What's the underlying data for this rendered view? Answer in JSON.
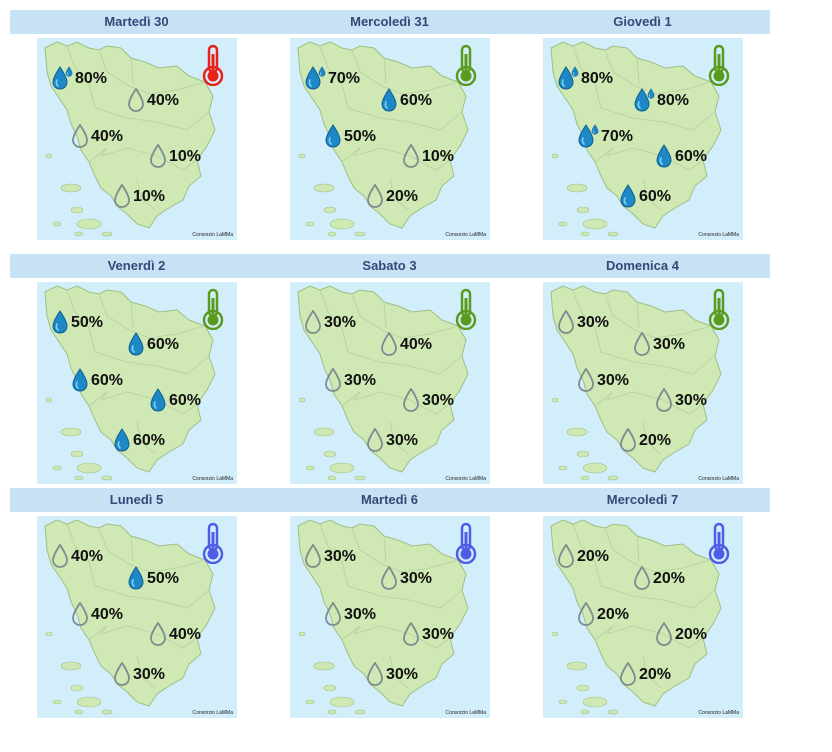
{
  "days": [
    {
      "title": "Martedì 30",
      "temp_color": "#e8221b",
      "credit": "Consorzio LaMMa",
      "rain": [
        {
          "v": "80%",
          "t": "wet",
          "mini": true
        },
        {
          "v": "40%",
          "t": "dry"
        },
        {
          "v": "40%",
          "t": "dry"
        },
        {
          "v": "10%",
          "t": "dry"
        },
        {
          "v": "10%",
          "t": "dry"
        }
      ]
    },
    {
      "title": "Mercoledì 31",
      "temp_color": "#5a9b1e",
      "credit": "Consorzio LaMMa",
      "rain": [
        {
          "v": "70%",
          "t": "wet",
          "mini": true
        },
        {
          "v": "60%",
          "t": "wet"
        },
        {
          "v": "50%",
          "t": "wet"
        },
        {
          "v": "10%",
          "t": "dry"
        },
        {
          "v": "20%",
          "t": "dry"
        }
      ]
    },
    {
      "title": "Giovedì 1",
      "temp_color": "#5a9b1e",
      "credit": "Consorzio LaMMa",
      "rain": [
        {
          "v": "80%",
          "t": "wet",
          "mini": true
        },
        {
          "v": "80%",
          "t": "wet",
          "mini": true
        },
        {
          "v": "70%",
          "t": "wet",
          "mini": true
        },
        {
          "v": "60%",
          "t": "wet"
        },
        {
          "v": "60%",
          "t": "wet"
        }
      ]
    },
    {
      "title": "Venerdì 2",
      "temp_color": "#5a9b1e",
      "credit": "Consorzio LaMMa",
      "rain": [
        {
          "v": "50%",
          "t": "wet"
        },
        {
          "v": "60%",
          "t": "wet"
        },
        {
          "v": "60%",
          "t": "wet"
        },
        {
          "v": "60%",
          "t": "wet"
        },
        {
          "v": "60%",
          "t": "wet"
        }
      ]
    },
    {
      "title": "Sabato 3",
      "temp_color": "#5a9b1e",
      "credit": "Consorzio LaMMa",
      "rain": [
        {
          "v": "30%",
          "t": "dry"
        },
        {
          "v": "40%",
          "t": "dry"
        },
        {
          "v": "30%",
          "t": "dry"
        },
        {
          "v": "30%",
          "t": "dry"
        },
        {
          "v": "30%",
          "t": "dry"
        }
      ]
    },
    {
      "title": "Domenica 4",
      "temp_color": "#5a9b1e",
      "credit": "Consorzio LaMMa",
      "rain": [
        {
          "v": "30%",
          "t": "dry"
        },
        {
          "v": "30%",
          "t": "dry"
        },
        {
          "v": "30%",
          "t": "dry"
        },
        {
          "v": "30%",
          "t": "dry"
        },
        {
          "v": "20%",
          "t": "dry"
        }
      ]
    },
    {
      "title": "Lunedì 5",
      "temp_color": "#4e5ce6",
      "credit": "Consorzio LaMMa",
      "rain": [
        {
          "v": "40%",
          "t": "dry"
        },
        {
          "v": "50%",
          "t": "wet"
        },
        {
          "v": "40%",
          "t": "dry"
        },
        {
          "v": "40%",
          "t": "dry"
        },
        {
          "v": "30%",
          "t": "dry"
        }
      ]
    },
    {
      "title": "Martedì 6",
      "temp_color": "#4e5ce6",
      "credit": "Consorzio LaMMa",
      "rain": [
        {
          "v": "30%",
          "t": "dry"
        },
        {
          "v": "30%",
          "t": "dry"
        },
        {
          "v": "30%",
          "t": "dry"
        },
        {
          "v": "30%",
          "t": "dry"
        },
        {
          "v": "30%",
          "t": "dry"
        }
      ]
    },
    {
      "title": "Mercoledì 7",
      "temp_color": "#4e5ce6",
      "credit": "Consorzio LaMMa",
      "rain": [
        {
          "v": "20%",
          "t": "dry"
        },
        {
          "v": "20%",
          "t": "dry"
        },
        {
          "v": "20%",
          "t": "dry"
        },
        {
          "v": "20%",
          "t": "dry"
        },
        {
          "v": "20%",
          "t": "dry"
        }
      ]
    }
  ]
}
